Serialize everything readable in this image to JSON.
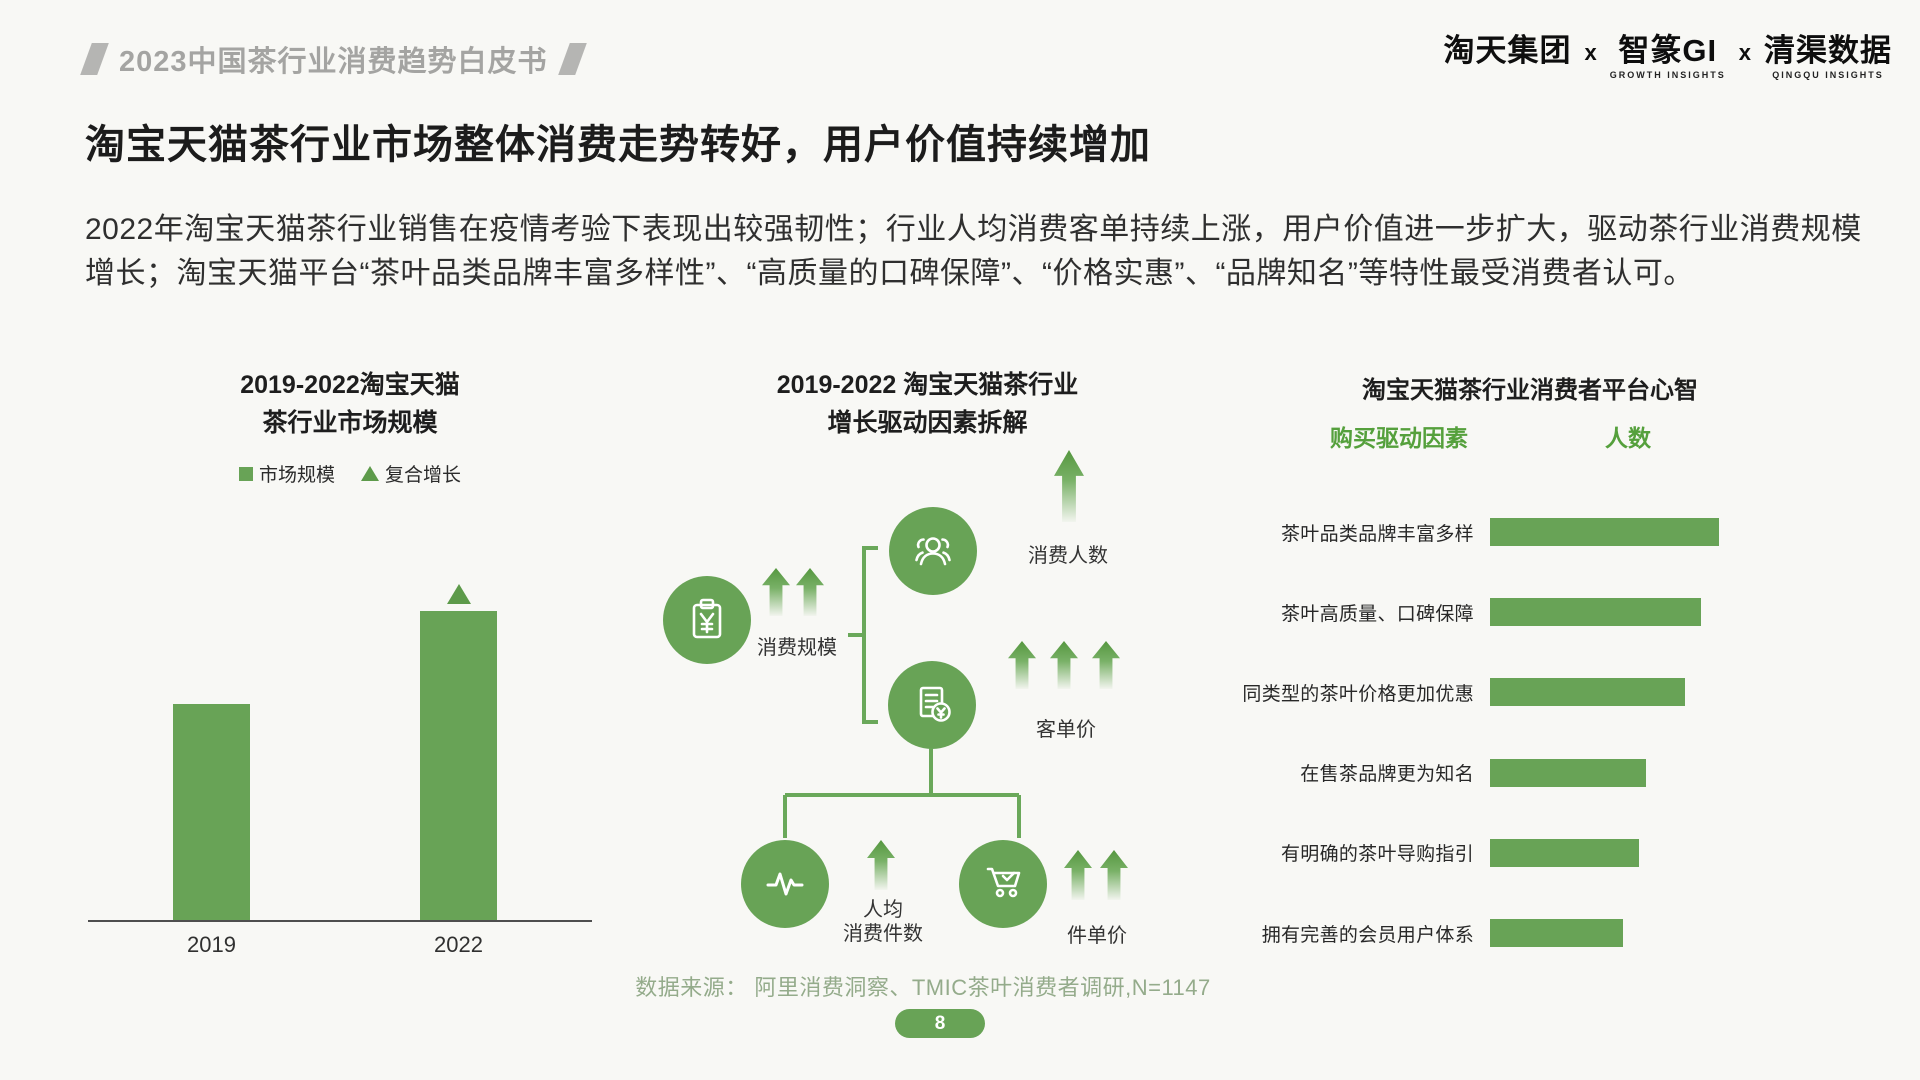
{
  "page": {
    "header_title": "2023中国茶行业消费趋势白皮书",
    "page_number": "8",
    "source_note": "数据来源： 阿里消费洞察、TMIC茶叶消费者调研,N=1147"
  },
  "logos": {
    "brand1": "淘天集团",
    "separator": "x",
    "brand2": "智篆GI",
    "brand2_sub": "GROWTH INSIGHTS",
    "brand3": "清渠数据",
    "brand3_sub": "QINGQU INSIGHTS"
  },
  "headline": "淘宝天猫茶行业市场整体消费走势转好，用户价值持续增加",
  "body": "2022年淘宝天猫茶行业销售在疫情考验下表现出较强韧性；行业人均消费客单持续上涨，用户价值进一步扩大，驱动茶行业消费规模增长；淘宝天猫平台“茶叶品类品牌丰富多样性”、“高质量的口碑保障”、“价格实惠”、“品牌知名”等特性最受消费者认可。",
  "colors": {
    "green_main": "#68a356",
    "green_text": "#55a03c",
    "footer_green": "#94ab8b",
    "header_gray": "#a4a4a2",
    "text_dark": "#1c1c1c"
  },
  "chart_data": [
    {
      "type": "bar",
      "title": [
        "2019-2022淘宝天猫",
        "茶行业市场规模"
      ],
      "legend": [
        {
          "label": "市场规模",
          "marker": "square"
        },
        {
          "label": "复合增长",
          "marker": "triangle"
        }
      ],
      "categories": [
        "2019",
        "2022"
      ],
      "values": [
        70,
        100
      ],
      "growth_markers": [
        false,
        true
      ],
      "note": "no numeric axis shown; values are relative bar heights",
      "ylabel": "",
      "xlabel": ""
    },
    {
      "type": "diagram",
      "title": [
        "2019-2022 淘宝天猫茶行业",
        "增长驱动因素拆解"
      ],
      "nodes": [
        {
          "id": "scale",
          "label": "消费规模",
          "icon": "clipboard-yen-icon",
          "arrows": 2
        },
        {
          "id": "buyers",
          "label": "消费人数",
          "icon": "people-icon",
          "arrows": 1
        },
        {
          "id": "aov",
          "label": "客单价",
          "icon": "receipt-yen-icon",
          "arrows": 3
        },
        {
          "id": "items",
          "label": "人均消费件数",
          "label_lines": [
            "人均",
            "消费件数"
          ],
          "icon": "pulse-icon",
          "arrows": 1
        },
        {
          "id": "unit_price",
          "label": "件单价",
          "icon": "cart-icon",
          "arrows": 2
        }
      ],
      "structure": "消费规模 = 消费人数 × 客单价; 客单价 = 人均消费件数 × 件单价"
    },
    {
      "type": "bar",
      "orientation": "horizontal",
      "title": "淘宝天猫茶行业消费者平台心智",
      "col_headers": [
        "购买驱动因素",
        "人数"
      ],
      "categories": [
        "茶叶品类品牌丰富多样",
        "茶叶高质量、口碑保障",
        "同类型的茶叶价格更加优惠",
        "在售茶品牌更为知名",
        "有明确的茶叶导购指引",
        "拥有完善的会员用户体系"
      ],
      "values": [
        100,
        92,
        85,
        68,
        65,
        58
      ],
      "note": "no numeric axis shown; values are relative bar lengths"
    }
  ]
}
